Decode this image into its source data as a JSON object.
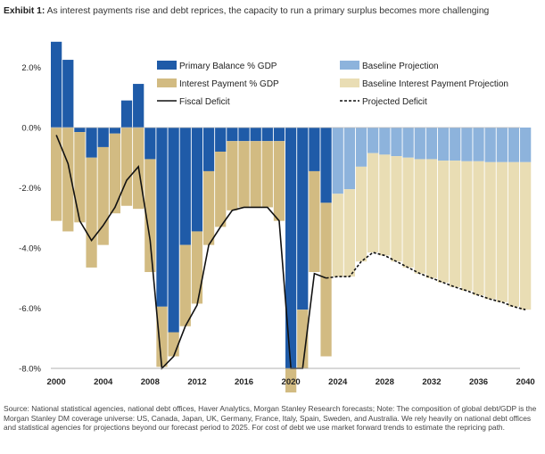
{
  "title": {
    "prefix": "Exhibit 1:",
    "text": "As interest payments rise and debt reprices, the capacity to run a primary surplus becomes more challenging"
  },
  "source": "Source: National statistical agencies, national debt offices, Haver Analytics, Morgan Stanley Research forecasts; Note: The composition of global debt/GDP is the Morgan Stanley DM coverage universe: US, Canada, Japan, UK, Germany, France, Italy, Spain, Sweden, and Australia. We rely heavily on national debt offices and statistical agencies for projections beyond our forecast period to 2025. For cost of debt we use market forward trends to estimate the repricing path.",
  "colors": {
    "primary": "#1f5ba8",
    "interest": "#d2bb82",
    "baseline": "#8db3dc",
    "baseline_interest": "#e9ddb4",
    "line": "#111111"
  },
  "chart_data": {
    "type": "bar",
    "title": "As interest payments rise and debt reprices, the capacity to run a primary surplus becomes more challenging",
    "xlabel": "",
    "ylabel": "",
    "ylim": [
      -8,
      3
    ],
    "yticks": [
      2,
      0,
      -2,
      -4,
      -6,
      -8
    ],
    "ytick_labels": [
      "2.0%",
      "0.0%",
      "-2.0%",
      "-4.0%",
      "-6.0%",
      "-8.0%"
    ],
    "xlim": [
      2000,
      2040
    ],
    "xticks": [
      2000,
      2004,
      2008,
      2012,
      2016,
      2020,
      2024,
      2028,
      2032,
      2036,
      2040
    ],
    "xtick_labels": [
      "2000",
      "2004",
      "2008",
      "2012",
      "2016",
      "2020",
      "2024",
      "2028",
      "2032",
      "2036",
      "2040"
    ],
    "legend_position": "top-right",
    "legend": [
      {
        "name": "Primary Balance % GDP",
        "kind": "bar",
        "color": "#1f5ba8"
      },
      {
        "name": "Baseline Projection",
        "kind": "bar",
        "color": "#8db3dc"
      },
      {
        "name": "Interest Payment % GDP",
        "kind": "bar",
        "color": "#d2bb82"
      },
      {
        "name": "Baseline Interest Payment Projection",
        "kind": "bar",
        "color": "#e9ddb4"
      },
      {
        "name": "Fiscal Deficit",
        "kind": "line",
        "color": "#111111"
      },
      {
        "name": "Projected Deficit",
        "kind": "dashed",
        "color": "#111111"
      }
    ],
    "historical": {
      "years": [
        2000,
        2001,
        2002,
        2003,
        2004,
        2005,
        2006,
        2007,
        2008,
        2009,
        2010,
        2011,
        2012,
        2013,
        2014,
        2015,
        2016,
        2017,
        2018,
        2019,
        2020,
        2021,
        2022,
        2023
      ],
      "primary_balance": [
        2.85,
        2.25,
        -0.15,
        -1.0,
        -0.65,
        -0.2,
        0.9,
        1.45,
        -1.05,
        -5.95,
        -6.8,
        -3.9,
        -3.45,
        -1.45,
        -0.8,
        -0.45,
        -0.45,
        -0.45,
        -0.45,
        -0.45,
        -8.0,
        -6.05,
        -1.45,
        -2.5
      ],
      "interest_payment": [
        -3.1,
        -3.45,
        -3.0,
        -3.65,
        -3.25,
        -2.65,
        -2.6,
        -2.7,
        -3.75,
        -2.0,
        -0.8,
        -2.7,
        -2.4,
        -2.45,
        -2.5,
        -2.3,
        -2.2,
        -2.2,
        -2.2,
        -2.65,
        -0.8,
        -1.95,
        -3.35,
        -5.1
      ],
      "fiscal_deficit": [
        -0.25,
        -1.2,
        -3.1,
        -3.75,
        -3.25,
        -2.65,
        -1.75,
        -1.3,
        -3.75,
        -8.0,
        -7.6,
        -6.6,
        -5.9,
        -3.9,
        -3.3,
        -2.75,
        -2.65,
        -2.65,
        -2.65,
        -3.1,
        -8.0,
        -8.0,
        -4.85,
        -5.0
      ]
    },
    "projection": {
      "years": [
        2024,
        2025,
        2026,
        2027,
        2028,
        2029,
        2030,
        2031,
        2032,
        2033,
        2034,
        2035,
        2036,
        2037,
        2038,
        2039,
        2040
      ],
      "baseline_projection": [
        -2.2,
        -2.05,
        -1.3,
        -0.85,
        -0.9,
        -0.95,
        -1.0,
        -1.05,
        -1.05,
        -1.1,
        -1.1,
        -1.12,
        -1.12,
        -1.15,
        -1.15,
        -1.15,
        -1.15
      ],
      "baseline_interest_projection": [
        -2.75,
        -2.9,
        -3.15,
        -3.3,
        -3.35,
        -3.5,
        -3.65,
        -3.8,
        -3.95,
        -4.05,
        -4.2,
        -4.3,
        -4.45,
        -4.55,
        -4.65,
        -4.8,
        -4.9
      ],
      "projected_deficit": [
        -4.95,
        -4.95,
        -4.45,
        -4.15,
        -4.25,
        -4.45,
        -4.65,
        -4.85,
        -5.0,
        -5.15,
        -5.3,
        -5.42,
        -5.57,
        -5.7,
        -5.8,
        -5.95,
        -6.05
      ]
    }
  }
}
